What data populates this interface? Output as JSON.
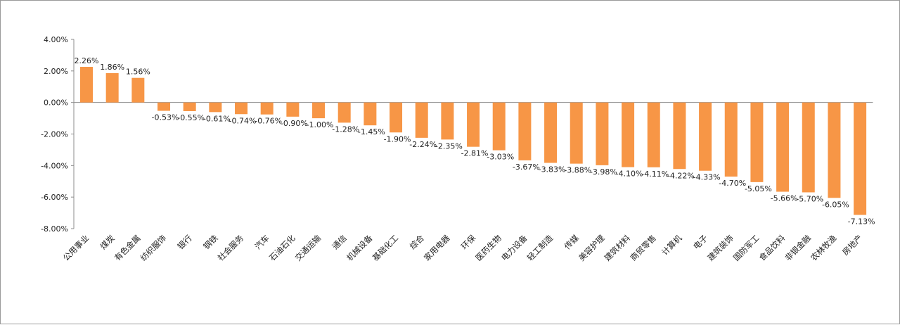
{
  "chart_data": {
    "type": "bar",
    "categories": [
      "公用事业",
      "煤炭",
      "有色金属",
      "纺织服饰",
      "银行",
      "钢铁",
      "社会服务",
      "汽车",
      "石油石化",
      "交通运输",
      "通信",
      "机械设备",
      "基础化工",
      "综合",
      "家用电器",
      "环保",
      "医药生物",
      "电力设备",
      "轻工制造",
      "传媒",
      "美容护理",
      "建筑材料",
      "商贸零售",
      "计算机",
      "电子",
      "建筑装饰",
      "国防军工",
      "食品饮料",
      "非银金融",
      "农林牧渔",
      "房地产"
    ],
    "values": [
      2.26,
      1.86,
      1.56,
      -0.53,
      -0.55,
      -0.61,
      -0.74,
      -0.76,
      -0.9,
      -1.0,
      -1.28,
      -1.45,
      -1.9,
      -2.24,
      -2.35,
      -2.81,
      -3.03,
      -3.67,
      -3.83,
      -3.88,
      -3.98,
      -4.1,
      -4.11,
      -4.22,
      -4.33,
      -4.7,
      -5.05,
      -5.66,
      -5.7,
      -6.05,
      -7.13
    ],
    "data_labels": [
      "2.26%",
      "1.86%",
      "1.56%",
      "-0.53%",
      "-0.55%",
      "-0.61%",
      "-0.74%",
      "-0.76%",
      "-0.90%",
      "-1.00%",
      "-1.28%",
      "-1.45%",
      "-1.90%",
      "-2.24%",
      "-2.35%",
      "-2.81%",
      "-3.03%",
      "-3.67%",
      "-3.83%",
      "-3.88%",
      "-3.98%",
      "-4.10%",
      "-4.11%",
      "-4.22%",
      "-4.33%",
      "-4.70%",
      "-5.05%",
      "-5.66%",
      "-5.70%",
      "-6.05%",
      "-7.13%"
    ],
    "y_ticks": [
      "4.00%",
      "2.00%",
      "0.00%",
      "-2.00%",
      "-4.00%",
      "-6.00%",
      "-8.00%"
    ],
    "ylim": [
      -8,
      4
    ],
    "unit": "%",
    "bar_color": "#F79646",
    "grid": false,
    "legend": "none",
    "title": "",
    "xlabel": "",
    "ylabel": ""
  }
}
